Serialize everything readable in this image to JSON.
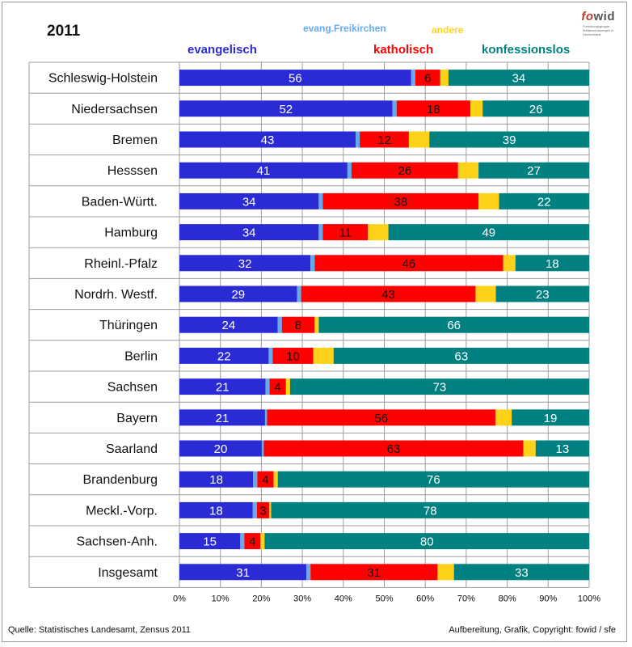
{
  "chart_data": {
    "type": "bar",
    "stacked": true,
    "orientation": "horizontal",
    "title": "2011",
    "xlim": [
      0,
      100
    ],
    "x_tick_labels": [
      "0%",
      "10%",
      "20%",
      "30%",
      "40%",
      "50%",
      "60%",
      "70%",
      "80%",
      "90%",
      "100%"
    ],
    "categories": [
      "Schleswig-Holstein",
      "Niedersachsen",
      "Bremen",
      "Hesssen",
      "Baden-Württ.",
      "Hamburg",
      "Rheinl.-Pfalz",
      "Nordrh. Westf.",
      "Thüringen",
      "Berlin",
      "Sachsen",
      "Bayern",
      "Saarland",
      "Brandenburg",
      "Meckl.-Vorp.",
      "Sachsen-Anh.",
      "Insgesamt"
    ],
    "series": [
      {
        "name": "evangelisch",
        "color": "#2b2bd6",
        "values": [
          56,
          52,
          43,
          41,
          34,
          34,
          32,
          29,
          24,
          22,
          21,
          21,
          20,
          18,
          18,
          15,
          31
        ],
        "labeled": true
      },
      {
        "name": "evang.Freikirchen",
        "color": "#66aaee",
        "values": [
          1,
          1,
          1,
          1,
          1,
          1,
          1,
          1,
          1,
          1,
          1,
          0.5,
          0.5,
          1,
          1,
          1,
          1
        ],
        "labeled": false
      },
      {
        "name": "katholisch",
        "color": "#ff0000",
        "values": [
          6,
          18,
          12,
          26,
          38,
          11,
          46,
          43,
          8,
          10,
          4,
          56,
          63,
          4,
          3,
          4,
          31
        ],
        "labeled": true
      },
      {
        "name": "andere",
        "color": "#ffd21a",
        "values": [
          2,
          3,
          5,
          5,
          5,
          5,
          3,
          5,
          1,
          5,
          1,
          4,
          3,
          1,
          0.5,
          1,
          4
        ],
        "labeled": false
      },
      {
        "name": "konfessionslos",
        "color": "#008080",
        "values": [
          34,
          26,
          39,
          27,
          22,
          49,
          18,
          23,
          66,
          63,
          73,
          19,
          13,
          76,
          78,
          80,
          33
        ],
        "labeled": true
      }
    ],
    "legend": [
      {
        "label": "evangelisch",
        "color": "#2b2bd6"
      },
      {
        "label": "evang.Freikirchen",
        "color": "#66aaee"
      },
      {
        "label": "andere",
        "color": "#ffd21a"
      },
      {
        "label": "katholisch",
        "color": "#ff0000"
      },
      {
        "label": "konfessionslos",
        "color": "#008080"
      }
    ],
    "grid": true
  },
  "logo": {
    "brand_a": "fo",
    "brand_b": "wid",
    "subtitle": "Forschungsgruppe Weltanschauungen in Deutschland"
  },
  "footer": {
    "source": "Quelle: Statistisches Landesamt, Zensus 2011",
    "credit": "Aufbereitung, Grafik, Copyright: fowid / sfe"
  }
}
